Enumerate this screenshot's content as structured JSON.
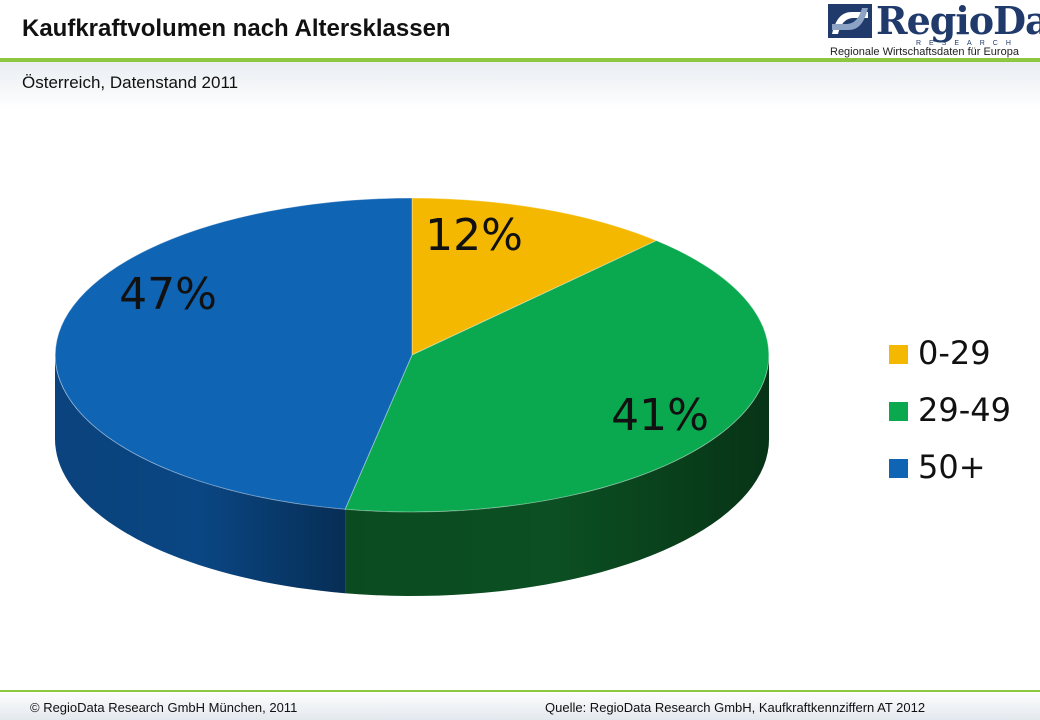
{
  "slide": {
    "title": "Kaufkraftvolumen nach Altersklassen",
    "subtitle": "Österreich, Datenstand 2011"
  },
  "logo": {
    "name": "RegioData",
    "subname": "RESEARCH",
    "tagline": "Regionale Wirtschaftsdaten für Europa"
  },
  "footer": {
    "copyright": "© RegioData Research GmbH München, 2011",
    "source": "Quelle: RegioData Research GmbH, Kaufkraftkennziffern AT 2012"
  },
  "colors": {
    "accent_green": "#8dc63f",
    "brand_blue": "#1f3a6b"
  },
  "chart_data": {
    "type": "pie",
    "style": "3d",
    "title": "Kaufkraftvolumen nach Altersklassen",
    "legend_position": "right",
    "categories": [
      "0-29",
      "29-49",
      "50+"
    ],
    "values": [
      12,
      41,
      47
    ],
    "labels": [
      "12%",
      "41%",
      "47%"
    ],
    "colors": [
      "#f5b800",
      "#0aa84f",
      "#0f64b4"
    ],
    "side_colors": [
      "#8f6a00",
      "#0b4f22",
      "#0a4683"
    ]
  }
}
